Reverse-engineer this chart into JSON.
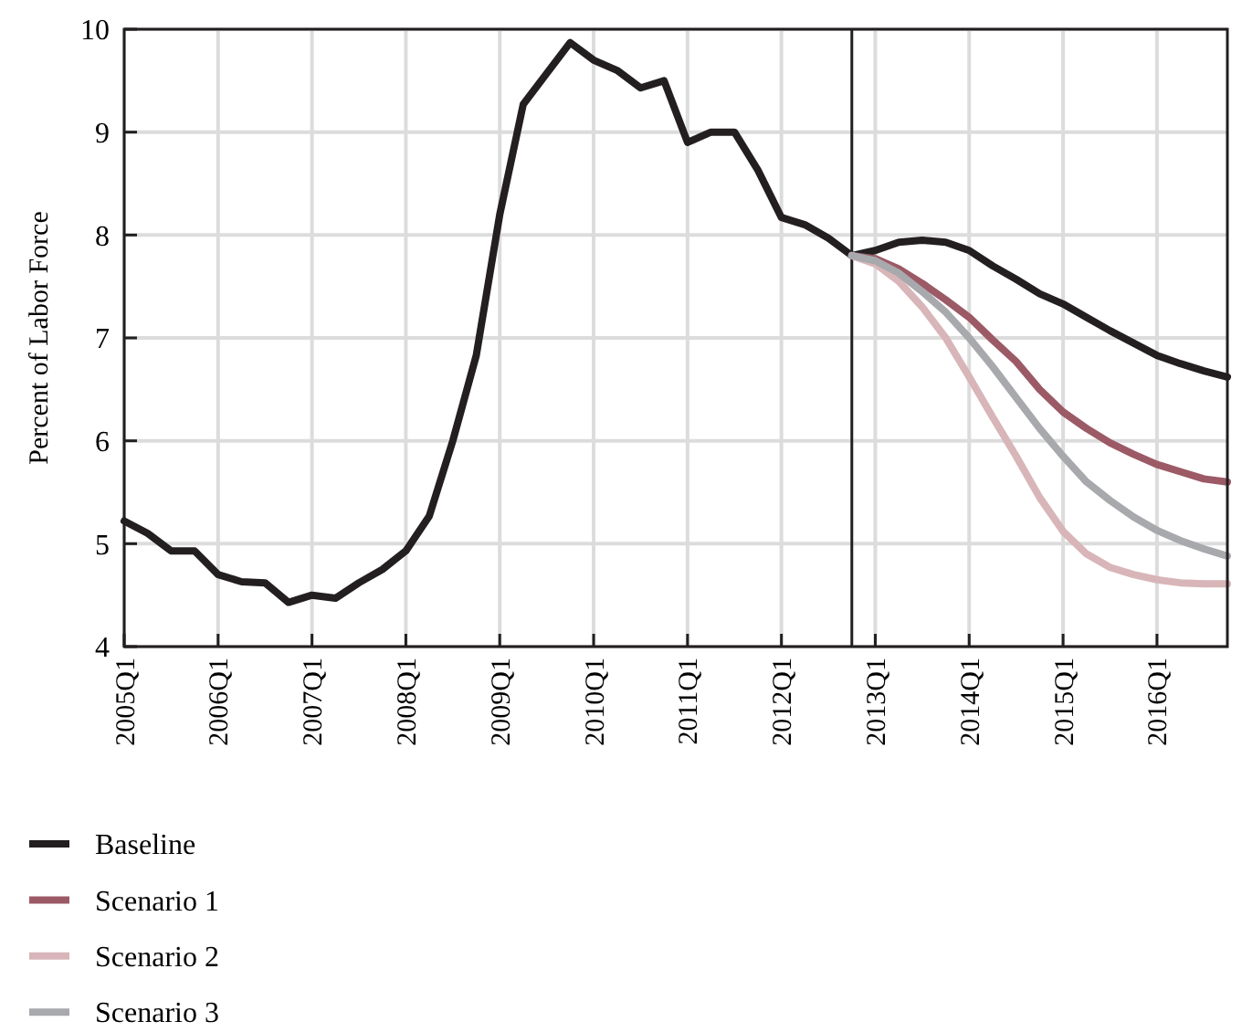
{
  "chart_data": {
    "type": "line",
    "ylabel": "Percent of Labor Force",
    "categories": [
      "2005Q1",
      null,
      null,
      null,
      "2006Q1",
      null,
      null,
      null,
      "2007Q1",
      null,
      null,
      null,
      "2008Q1",
      null,
      null,
      null,
      "2009Q1",
      null,
      null,
      null,
      "2010Q1",
      null,
      null,
      null,
      "2011Q1",
      null,
      null,
      null,
      "2012Q1",
      null,
      null,
      null,
      "2013Q1",
      null,
      null,
      null,
      "2014Q1",
      null,
      null,
      null,
      "2015Q1",
      null,
      null,
      null,
      "2016Q1",
      null,
      null,
      null
    ],
    "series": [
      {
        "name": "Baseline",
        "color": "#231f20",
        "values": [
          5.22,
          5.1,
          4.93,
          4.93,
          4.7,
          4.63,
          4.62,
          4.43,
          4.5,
          4.47,
          4.62,
          4.75,
          4.93,
          5.27,
          6.0,
          6.83,
          8.2,
          9.27,
          9.57,
          9.87,
          9.7,
          9.6,
          9.43,
          9.5,
          8.9,
          9.0,
          9.0,
          8.63,
          8.17,
          8.1,
          7.97,
          7.8,
          7.85,
          7.93,
          7.95,
          7.93,
          7.85,
          7.7,
          7.57,
          7.43,
          7.33,
          7.2,
          7.07,
          6.95,
          6.83,
          6.75,
          6.68,
          6.62
        ]
      },
      {
        "name": "Scenario 1",
        "color": "#9b5a66",
        "values": [
          null,
          null,
          null,
          null,
          null,
          null,
          null,
          null,
          null,
          null,
          null,
          null,
          null,
          null,
          null,
          null,
          null,
          null,
          null,
          null,
          null,
          null,
          null,
          null,
          null,
          null,
          null,
          null,
          null,
          null,
          null,
          7.8,
          7.77,
          7.67,
          7.53,
          7.37,
          7.2,
          6.98,
          6.77,
          6.5,
          6.28,
          6.12,
          5.98,
          5.87,
          5.77,
          5.7,
          5.63,
          5.6
        ]
      },
      {
        "name": "Scenario 2",
        "color": "#d8b5b8",
        "values": [
          null,
          null,
          null,
          null,
          null,
          null,
          null,
          null,
          null,
          null,
          null,
          null,
          null,
          null,
          null,
          null,
          null,
          null,
          null,
          null,
          null,
          null,
          null,
          null,
          null,
          null,
          null,
          null,
          null,
          null,
          null,
          7.8,
          7.72,
          7.55,
          7.3,
          7.0,
          6.62,
          6.23,
          5.85,
          5.45,
          5.12,
          4.9,
          4.77,
          4.7,
          4.65,
          4.62,
          4.61,
          4.61
        ]
      },
      {
        "name": "Scenario 3",
        "color": "#a8a9ad",
        "values": [
          null,
          null,
          null,
          null,
          null,
          null,
          null,
          null,
          null,
          null,
          null,
          null,
          null,
          null,
          null,
          null,
          null,
          null,
          null,
          null,
          null,
          null,
          null,
          null,
          null,
          null,
          null,
          null,
          null,
          null,
          null,
          7.8,
          7.75,
          7.63,
          7.45,
          7.25,
          7.0,
          6.72,
          6.42,
          6.12,
          5.85,
          5.6,
          5.42,
          5.26,
          5.13,
          5.03,
          4.95,
          4.88
        ]
      }
    ],
    "ylim": [
      4,
      10
    ],
    "yticks": [
      4,
      5,
      6,
      7,
      8,
      9,
      10
    ],
    "grid": true,
    "legend": "bottom left",
    "marker": "none",
    "line_style": "solid"
  }
}
